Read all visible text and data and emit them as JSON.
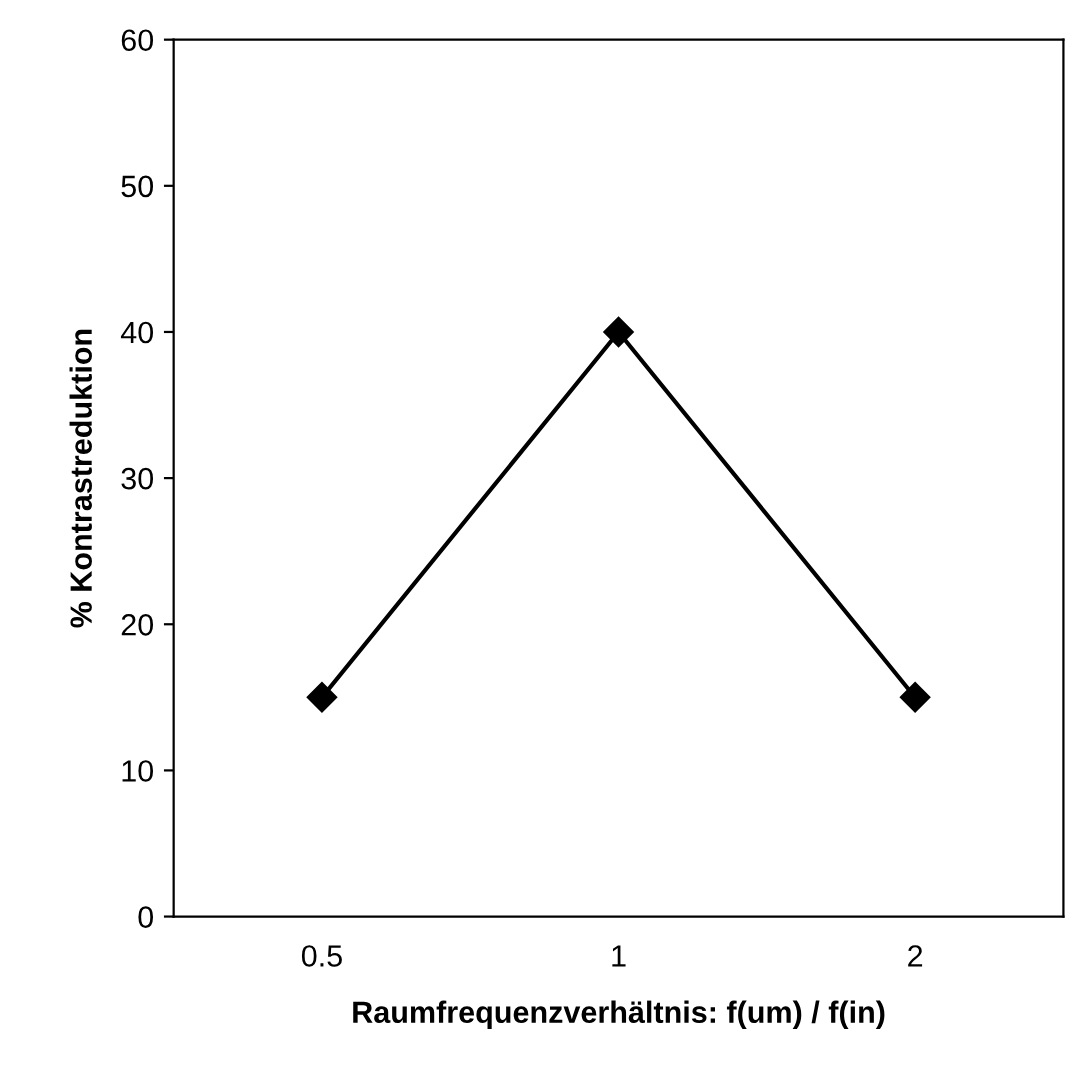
{
  "chart_data": {
    "type": "line",
    "xlabel": "Raumfrequenzverhältnis: f(um) / f(in)",
    "ylabel": "% Kontrastreduktion",
    "categories": [
      "0.5",
      "1",
      "2"
    ],
    "series": [
      {
        "color": "#000000",
        "values": [
          15,
          40,
          15
        ]
      }
    ],
    "ylim": [
      0,
      60
    ],
    "yticks": [
      0,
      10,
      20,
      30,
      40,
      50,
      60
    ],
    "marker": "diamond",
    "line_style": "solid",
    "grid": false
  }
}
